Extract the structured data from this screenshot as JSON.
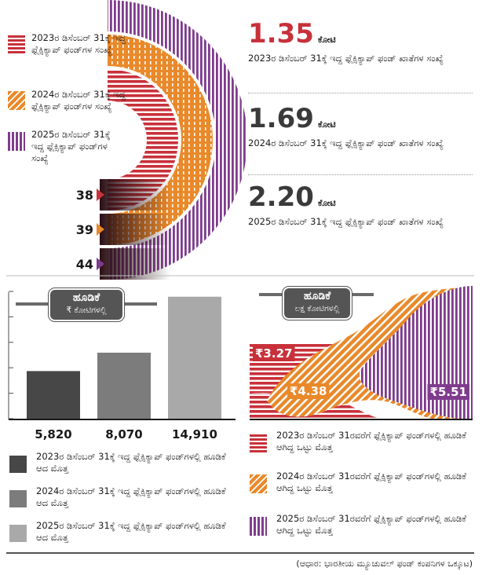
{
  "count_legend": [
    {
      "text": "2023ರ ಡಿಸೆಂಬರ್ 31ಕ್ಕೆ ಇದ್ದ ಫ್ಲೆಕ್ಸಿಕ್ಯಾಪ್ ಫಂಡ್‌ಗಳ ಸಂಖ್ಯೆ",
      "color": "#c8313a"
    },
    {
      "text": "2024ರ ಡಿಸೆಂಬರ್ 31ಕ್ಕೆ ಇದ್ದ ಫ್ಲೆಕ್ಸಿಕ್ಯಾಪ್ ಫಂಡ್‌ಗಳ ಸಂಖ್ಯೆ",
      "color": "#e9892a"
    },
    {
      "text": "2025ರ ಡಿಸೆಂಬರ್ 31ಕ್ಕೆ ಇದ್ದ ಫ್ಲೆಕ್ಸಿಕ್ಯಾಪ್ ಫಂಡ್‌ಗಳ ಸಂಖ್ಯೆ",
      "color": "#7f3c8d"
    }
  ],
  "accounts": [
    {
      "value": "1.35",
      "unit": "ಕೋಟಿ",
      "text": "2023ರ ಡಿಸೆಂಬರ್ 31ಕ್ಕೆ ಇದ್ದ ಫ್ಲೆಕ್ಸಿಕ್ಯಾಪ್ ಫಂಡ್ ಖಾತೆಗಳ ಸಂಖ್ಯೆ",
      "color": "#c8313a"
    },
    {
      "value": "1.69",
      "unit": "ಕೋಟಿ",
      "text": "2024ರ ಡಿಸೆಂಬರ್ 31ಕ್ಕೆ ಇದ್ದ ಫ್ಲೆಕ್ಸಿಕ್ಯಾಪ್ ಫಂಡ್ ಖಾತೆಗಳ ಸಂಖ್ಯೆ",
      "color": "#3a3a3a"
    },
    {
      "value": "2.20",
      "unit": "ಕೋಟಿ",
      "text": "2025ರ ಡಿಸೆಂಬರ್ 31ಕ್ಕೆ ಇದ್ದ ಫ್ಲೆಕ್ಸಿಕ್ಯಾಪ್ ಫಂಡ್ ಖಾತೆಗಳ ಸಂಖ್ಯೆ",
      "color": "#3a3a3a"
    }
  ],
  "inflow_title": "ಹೂಡಿಕೆ",
  "inflow_unit": "₹ ಕೋಟಿಗಳಲ್ಲಿ",
  "inflow_legend": [
    {
      "text": "2023ರ ಡಿಸೆಂಬರ್ 31ಕ್ಕೆ ಇದ್ದ ಫ್ಲೆಕ್ಸಿಕ್ಯಾಪ್ ಫಂಡ್‌ಗಳಲ್ಲಿ ಹೂಡಿಕೆ ಆದ ಮೊತ್ತ",
      "color": "#474747"
    },
    {
      "text": "2024ರ ಡಿಸೆಂಬರ್ 31ಕ್ಕೆ ಇದ್ದ ಫ್ಲೆಕ್ಸಿಕ್ಯಾಪ್ ಫಂಡ್‌ಗಳಲ್ಲಿ ಹೂಡಿಕೆ ಆದ ಮೊತ್ತ",
      "color": "#7c7c7c"
    },
    {
      "text": "2025ರ ಡಿಸೆಂಬರ್ 31ಕ್ಕೆ ಇದ್ದ ಫ್ಲೆಕ್ಸಿಕ್ಯಾಪ್ ಫಂಡ್‌ಗಳಲ್ಲಿ ಹೂಡಿಕೆ ಆದ ಮೊತ್ತ",
      "color": "#a9a9a9"
    }
  ],
  "aum_title": "ಹೂಡಿಕೆ",
  "aum_unit": "ಲಕ್ಷ ಕೋಟಿಗಳಲ್ಲಿ",
  "aum_legend": [
    {
      "text": "2023ರ ಡಿಸೆಂಬರ್ 31ರವರೆಗೆ ಫ್ಲೆಕ್ಸಿಕ್ಯಾಪ್ ಫಂಡ್‌ಗಳಲ್ಲಿ ಹೂಡಿಕೆ ಆಗಿದ್ದ ಒಟ್ಟು ಮೊತ್ತ"
    },
    {
      "text": "2024ರ ಡಿಸೆಂಬರ್ 31ರವರೆಗೆ ಫ್ಲೆಕ್ಸಿಕ್ಯಾಪ್ ಫಂಡ್‌ಗಳಲ್ಲಿ ಹೂಡಿಕೆ ಆಗಿದ್ದ ಒಟ್ಟು ಮೊತ್ತ"
    },
    {
      "text": "2025ರ ಡಿಸೆಂಬರ್ 31ರವರೆಗೆ ಫ್ಲೆಕ್ಸಿಕ್ಯಾಪ್ ಫಂಡ್‌ಗಳಲ್ಲಿ ಹೂಡಿಕೆ ಆಗಿದ್ದ ಒಟ್ಟು ಮೊತ್ತ"
    }
  ],
  "source": "(ಆಧಾರ: ಭಾರತೀಯ ಮ್ಯೂಚುವಲ್ ಫಂಡ್ ಕಂಪನಿಗಳ ಒಕ್ಕೂಟ)",
  "chart_data": [
    {
      "type": "bar",
      "title": "ಫ್ಲೆಕ್ಸಿಕ್ಯಾಪ್ ಫಂಡ್‌ಗಳ ಸಂಖ್ಯೆ",
      "categories": [
        "2023",
        "2024",
        "2025"
      ],
      "values": [
        38,
        39,
        44
      ],
      "labels": [
        "38",
        "39",
        "44"
      ],
      "colors": [
        "#c8313a",
        "#e9892a",
        "#7f3c8d"
      ],
      "ylim": [
        0,
        44
      ]
    },
    {
      "type": "bar",
      "title": "ಹೂಡಿಕೆ",
      "ylabel": "₹ ಕೋಟಿಗಳಲ್ಲಿ",
      "categories": [
        "2023",
        "2024",
        "2025"
      ],
      "values": [
        5820,
        8070,
        14910
      ],
      "labels": [
        "5,820",
        "8,070",
        "14,910"
      ],
      "colors": [
        "#474747",
        "#7c7c7c",
        "#a9a9a9"
      ],
      "ylim": [
        0,
        16000
      ]
    },
    {
      "type": "area",
      "title": "ಹೂಡಿಕೆ",
      "ylabel": "ಲಕ್ಷ ಕೋಟಿಗಳಲ್ಲಿ",
      "categories": [
        "2023",
        "2024",
        "2025"
      ],
      "values": [
        3.27,
        4.38,
        5.51
      ],
      "labels": [
        "₹3.27",
        "₹4.38",
        "₹5.51"
      ],
      "colors": [
        "#c8313a",
        "#e9892a",
        "#7f3c8d"
      ]
    }
  ]
}
